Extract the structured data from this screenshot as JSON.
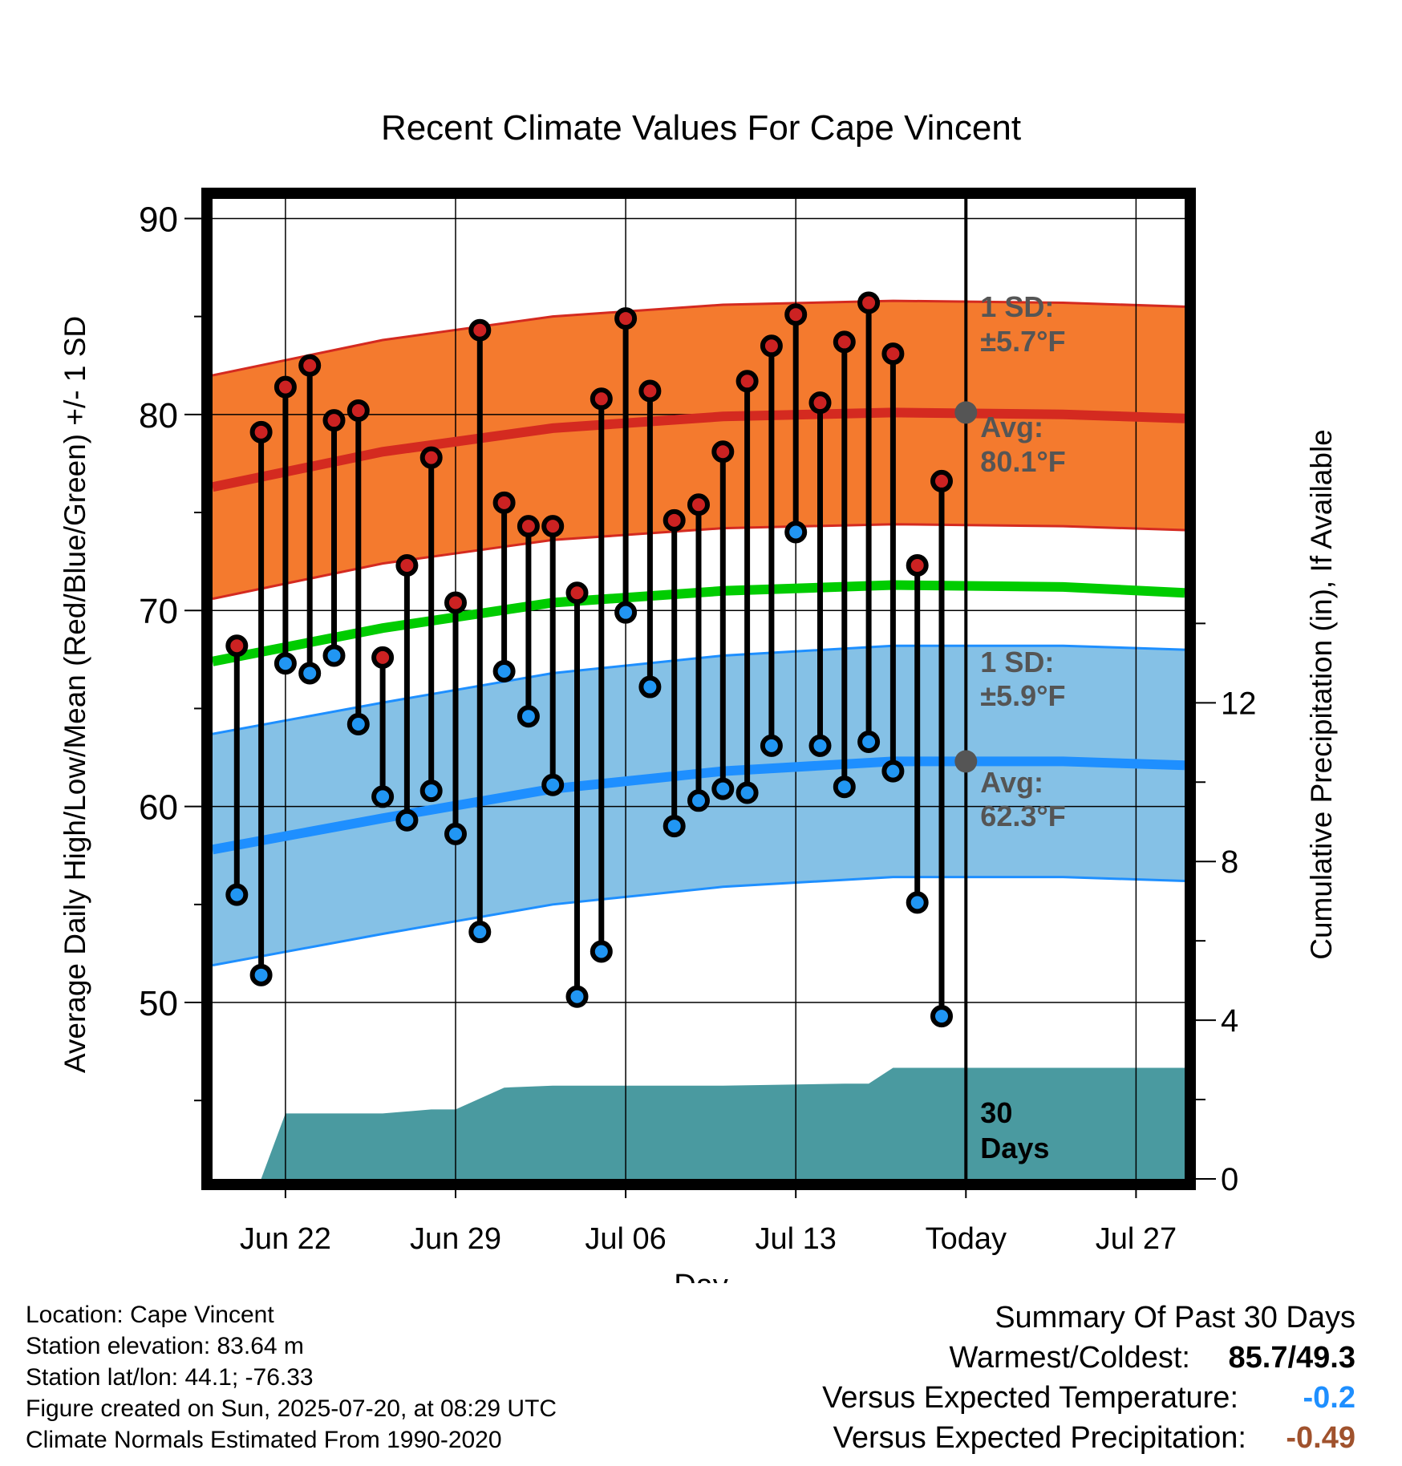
{
  "title": "Recent Climate Values For Cape Vincent",
  "chart_data": {
    "type": "line",
    "title": "Recent Climate Values For Cape Vincent",
    "xlabel": "Day",
    "ylabel": "Average Daily High/Low/Mean (Red/Blue/Green) +/- 1 SD",
    "y2label": "Cumulative Precipitation (in), If Available",
    "ylim": [
      41,
      91
    ],
    "y2lim": [
      0,
      24.7
    ],
    "yticks": [
      50,
      60,
      70,
      80,
      90
    ],
    "y2ticks": [
      0,
      4,
      8,
      12
    ],
    "xtick_labels": [
      "Jun 22",
      "Jun 29",
      "Jul 06",
      "Jul 13",
      "Today",
      "Jul 27"
    ],
    "xtick_dates": [
      "2025-06-22",
      "2025-06-29",
      "2025-07-06",
      "2025-07-13",
      "2025-07-20",
      "2025-07-27"
    ],
    "x_range": [
      "2025-06-19",
      "2025-07-29"
    ],
    "today": "2025-07-20",
    "grid": true,
    "dates": [
      "2025-06-20",
      "2025-06-21",
      "2025-06-22",
      "2025-06-23",
      "2025-06-24",
      "2025-06-25",
      "2025-06-26",
      "2025-06-27",
      "2025-06-28",
      "2025-06-29",
      "2025-06-30",
      "2025-07-01",
      "2025-07-02",
      "2025-07-03",
      "2025-07-04",
      "2025-07-05",
      "2025-07-06",
      "2025-07-07",
      "2025-07-08",
      "2025-07-09",
      "2025-07-10",
      "2025-07-11",
      "2025-07-12",
      "2025-07-13",
      "2025-07-14",
      "2025-07-15",
      "2025-07-16",
      "2025-07-17",
      "2025-07-18",
      "2025-07-19"
    ],
    "highs": [
      68.2,
      79.1,
      81.4,
      82.5,
      79.7,
      80.2,
      67.6,
      72.3,
      77.8,
      70.4,
      84.3,
      75.5,
      74.3,
      74.3,
      70.9,
      80.8,
      84.9,
      81.2,
      74.6,
      75.4,
      78.1,
      81.7,
      83.5,
      85.1,
      80.6,
      83.7,
      85.7,
      83.1,
      72.3,
      76.6
    ],
    "lows": [
      55.5,
      51.4,
      67.3,
      66.8,
      67.7,
      64.2,
      60.5,
      59.3,
      60.8,
      58.6,
      53.6,
      66.9,
      64.6,
      61.1,
      50.3,
      52.6,
      69.9,
      66.1,
      59.0,
      60.3,
      60.9,
      60.7,
      63.1,
      74.0,
      63.1,
      61.0,
      63.3,
      61.8,
      55.1,
      49.3
    ],
    "normal_dates": [
      "2025-06-19",
      "2025-06-26",
      "2025-07-03",
      "2025-07-10",
      "2025-07-17",
      "2025-07-24",
      "2025-07-29"
    ],
    "normal_high": [
      76.3,
      78.1,
      79.3,
      79.9,
      80.1,
      80.0,
      79.8
    ],
    "normal_high_sd": 5.7,
    "normal_low": [
      57.8,
      59.4,
      60.9,
      61.8,
      62.3,
      62.3,
      62.1
    ],
    "normal_low_sd": 5.9,
    "normal_mean": [
      67.4,
      69.1,
      70.4,
      71.0,
      71.3,
      71.2,
      70.9
    ],
    "precip_steps": [
      [
        "2025-06-21",
        0
      ],
      [
        "2025-06-22",
        1.65
      ],
      [
        "2025-06-26",
        1.65
      ],
      [
        "2025-06-28",
        1.75
      ],
      [
        "2025-06-29",
        1.75
      ],
      [
        "2025-07-01",
        2.3
      ],
      [
        "2025-07-03",
        2.35
      ],
      [
        "2025-07-10",
        2.35
      ],
      [
        "2025-07-15",
        2.4
      ],
      [
        "2025-07-16",
        2.4
      ],
      [
        "2025-07-17",
        2.8
      ],
      [
        "2025-07-29",
        2.8
      ]
    ],
    "colors": {
      "high_band": "#f47a2e",
      "high_line": "#d42a20",
      "low_band": "#85c1e6",
      "low_line": "#1e8fff",
      "mean_line": "#00cc00",
      "precip": "#4a9aa0",
      "high_marker": "#cc2222",
      "low_marker": "#2196f3",
      "avg_marker": "#555555"
    }
  },
  "annotations": {
    "high_sd_label": "1 SD:",
    "high_sd_value": "±5.7°F",
    "high_avg_label": "Avg:",
    "high_avg_value": "80.1°F",
    "high_avg": 80.1,
    "low_sd_label": "1 SD:",
    "low_sd_value": "±5.9°F",
    "low_avg_label": "Avg:",
    "low_avg_value": "62.3°F",
    "low_avg": 62.3,
    "days_number": "30",
    "days_word": "Days"
  },
  "footer": {
    "location": "Location: Cape Vincent",
    "elevation": "Station elevation: 83.64 m",
    "latlon": "Station lat/lon: 44.1; -76.33",
    "created": "Figure created on Sun, 2025-07-20, at 08:29 UTC",
    "normals": "Climate Normals Estimated From 1990-2020"
  },
  "summary": {
    "title": "Summary Of Past 30 Days",
    "warmest_label": "Warmest/Coldest:",
    "warmest_value": "85.7/49.3",
    "temp_label": "Versus Expected Temperature:",
    "temp_value": "-0.2",
    "temp_color": "#1e8fff",
    "precip_label": "Versus Expected Precipitation:",
    "precip_value": "-0.49",
    "precip_color": "#a0522d"
  }
}
